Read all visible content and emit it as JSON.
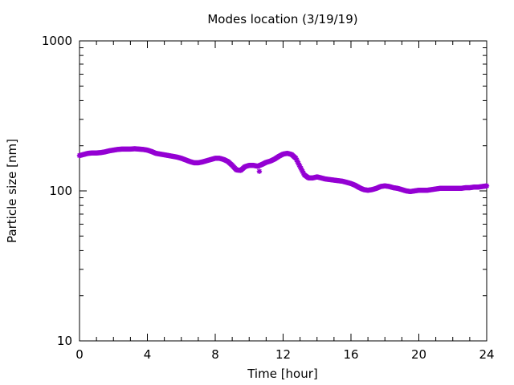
{
  "chart_data": {
    "type": "scatter",
    "title": "Modes location (3/19/19)",
    "xlabel": "Time [hour]",
    "ylabel": "Particle size [nm]",
    "xlim": [
      0,
      24
    ],
    "ylim": [
      10,
      1000
    ],
    "yscale": "log",
    "grid": false,
    "x_ticks": [
      0,
      4,
      8,
      12,
      16,
      20,
      24
    ],
    "x_tick_labels": [
      "0",
      "4",
      "8",
      "12",
      "16",
      "20",
      "24"
    ],
    "y_ticks": [
      10,
      100,
      1000
    ],
    "y_tick_labels": [
      "10",
      "100",
      "1000"
    ],
    "marker_color": "#9400d3",
    "series": [
      {
        "x": [
          0.0,
          0.25,
          0.5,
          0.75,
          1.0,
          1.25,
          1.5,
          1.75,
          2.0,
          2.25,
          2.5,
          2.75,
          3.0,
          3.25,
          3.5,
          3.75,
          4.0,
          4.25,
          4.5,
          4.75,
          5.0,
          5.25,
          5.5,
          5.75,
          6.0,
          6.25,
          6.5,
          6.75,
          7.0,
          7.25,
          7.5,
          7.75,
          8.0,
          8.25,
          8.5,
          8.75,
          9.0,
          9.25,
          9.5,
          9.75,
          10.0,
          10.25,
          10.5,
          10.75,
          11.0,
          11.25,
          11.5,
          11.75,
          12.0,
          12.25,
          12.5,
          12.75,
          13.0,
          13.25,
          13.5,
          13.75,
          14.0,
          14.25,
          14.5,
          14.75,
          15.0,
          15.25,
          15.5,
          15.75,
          16.0,
          16.25,
          16.5,
          16.75,
          17.0,
          17.25,
          17.5,
          17.75,
          18.0,
          18.25,
          18.5,
          18.75,
          19.0,
          19.25,
          19.5,
          19.75,
          20.0,
          20.25,
          20.5,
          20.75,
          21.0,
          21.25,
          21.5,
          21.75,
          22.0,
          22.25,
          22.5,
          22.75,
          23.0,
          23.25,
          23.5,
          23.75,
          24.0
        ],
        "values": [
          172,
          175,
          178,
          179,
          179,
          180,
          182,
          185,
          187,
          189,
          190,
          190,
          190,
          191,
          190,
          189,
          187,
          183,
          178,
          176,
          174,
          172,
          170,
          168,
          165,
          161,
          157,
          154,
          154,
          156,
          159,
          162,
          165,
          165,
          162,
          157,
          148,
          138,
          137,
          145,
          148,
          148,
          146,
          150,
          155,
          158,
          163,
          170,
          176,
          178,
          175,
          165,
          145,
          128,
          122,
          122,
          124,
          122,
          120,
          119,
          118,
          117,
          116,
          114,
          112,
          109,
          105,
          102,
          101,
          102,
          104,
          107,
          108,
          107,
          105,
          104,
          102,
          100,
          99,
          100,
          101,
          101,
          101,
          102,
          103,
          104,
          104,
          104,
          104,
          104,
          104,
          105,
          105,
          106,
          106,
          107,
          108
        ]
      },
      {
        "x": [
          10.6
        ],
        "values": [
          135
        ]
      }
    ]
  }
}
